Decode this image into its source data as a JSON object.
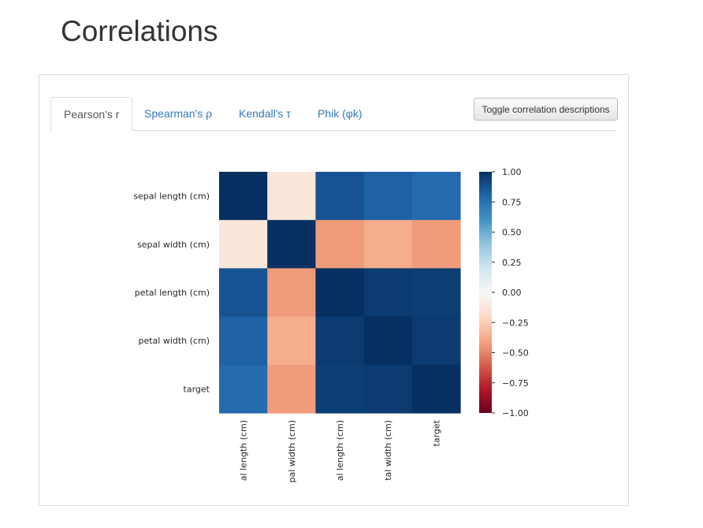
{
  "page": {
    "title": "Correlations"
  },
  "tabs": [
    {
      "label": "Pearson's r",
      "active": true
    },
    {
      "label": "Spearman's ρ",
      "active": false
    },
    {
      "label": "Kendall's τ",
      "active": false
    },
    {
      "label": "Phik (φk)",
      "active": false
    }
  ],
  "toggle_button": {
    "label": "Toggle correlation descriptions"
  },
  "chart_data": {
    "type": "heatmap",
    "title": "",
    "row_labels": [
      "sepal length (cm)",
      "sepal width (cm)",
      "petal length (cm)",
      "petal width (cm)",
      "target"
    ],
    "col_labels": [
      "al length (cm)",
      "pal width (cm)",
      "al length (cm)",
      "tal width (cm)",
      "target"
    ],
    "values": [
      [
        1.0,
        -0.12,
        0.87,
        0.82,
        0.78
      ],
      [
        -0.12,
        1.0,
        -0.43,
        -0.37,
        -0.43
      ],
      [
        0.87,
        -0.43,
        1.0,
        0.96,
        0.95
      ],
      [
        0.82,
        -0.37,
        0.96,
        1.0,
        0.96
      ],
      [
        0.78,
        -0.43,
        0.95,
        0.96,
        1.0
      ]
    ],
    "colorbar": {
      "min": -1.0,
      "max": 1.0,
      "tick_values": [
        1.0,
        0.75,
        0.5,
        0.25,
        0.0,
        -0.25,
        -0.5,
        -0.75,
        -1.0
      ],
      "tick_labels": [
        "1.00",
        "0.75",
        "0.50",
        "0.25",
        "0.00",
        "−0.25",
        "−0.50",
        "−0.75",
        "−1.00"
      ],
      "colormap": "RdBu"
    },
    "grid": false
  }
}
